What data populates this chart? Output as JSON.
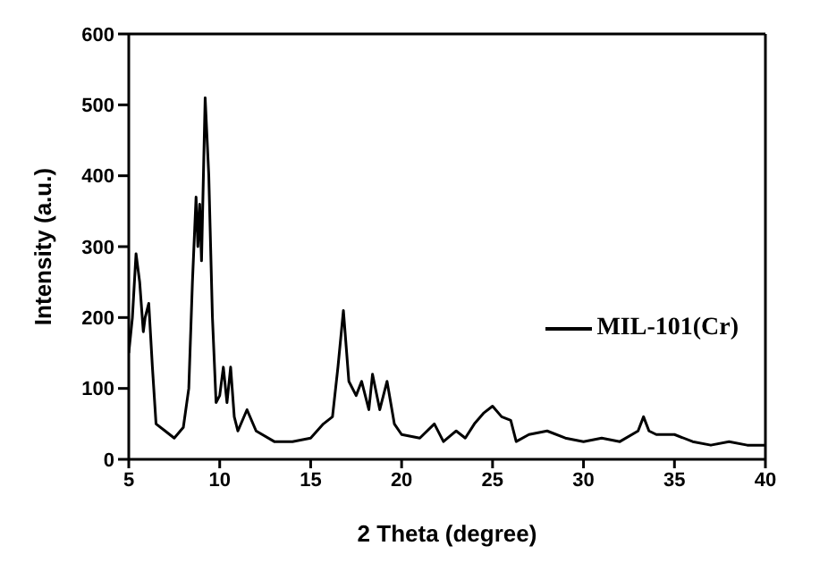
{
  "chart_data": {
    "type": "line",
    "xlabel": "2 Theta (degree)",
    "ylabel": "Intensity (a.u.)",
    "xlim": [
      5,
      40
    ],
    "xticks": [
      5,
      10,
      15,
      20,
      25,
      30,
      35,
      40
    ],
    "ylim": [
      0,
      600
    ],
    "yticks": [
      0,
      100,
      200,
      300,
      400,
      500,
      600
    ],
    "legend": "right",
    "marker": "none",
    "line_style": "solid",
    "series": [
      {
        "name": "MIL-101(Cr)",
        "color": "#000000",
        "x": [
          5.0,
          5.2,
          5.4,
          5.6,
          5.8,
          5.9,
          6.1,
          6.3,
          6.5,
          7.0,
          7.5,
          8.0,
          8.3,
          8.5,
          8.7,
          8.8,
          8.9,
          9.0,
          9.2,
          9.4,
          9.6,
          9.8,
          10.0,
          10.2,
          10.4,
          10.6,
          10.8,
          11.0,
          11.5,
          12.0,
          13,
          14,
          15,
          15.7,
          16.2,
          16.5,
          16.8,
          17.1,
          17.5,
          17.8,
          18.2,
          18.4,
          18.8,
          19.2,
          19.6,
          20,
          21,
          21.8,
          22.3,
          23,
          23.5,
          24,
          24.5,
          25,
          25.5,
          26,
          26.3,
          27,
          28,
          29,
          30,
          31,
          32,
          33,
          33.3,
          33.6,
          34,
          35,
          36,
          37,
          38,
          39,
          40
        ],
        "values": [
          150,
          200,
          290,
          250,
          180,
          200,
          220,
          130,
          50,
          40,
          30,
          45,
          100,
          250,
          370,
          300,
          360,
          280,
          510,
          400,
          200,
          80,
          90,
          130,
          80,
          130,
          60,
          40,
          70,
          40,
          25,
          25,
          30,
          50,
          60,
          130,
          210,
          110,
          90,
          110,
          70,
          120,
          70,
          110,
          50,
          35,
          30,
          50,
          25,
          40,
          30,
          50,
          65,
          75,
          60,
          55,
          25,
          35,
          40,
          30,
          25,
          30,
          25,
          40,
          60,
          40,
          35,
          35,
          25,
          20,
          25,
          20,
          20
        ]
      }
    ]
  }
}
